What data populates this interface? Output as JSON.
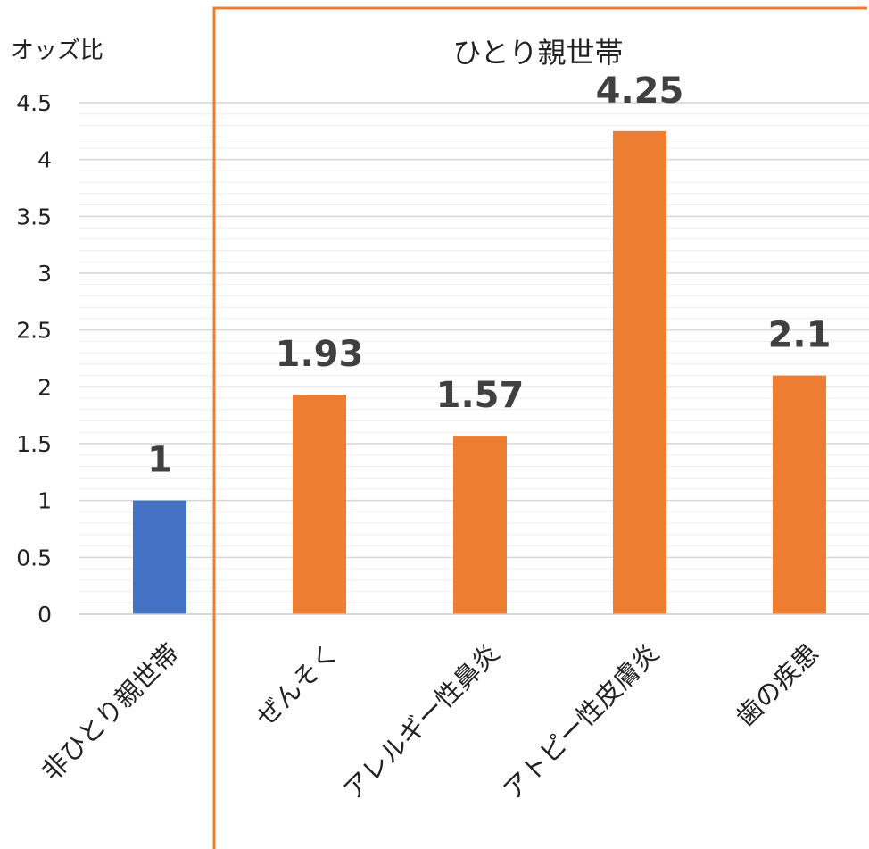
{
  "chart_data": {
    "type": "bar",
    "ylabel": "オッズ比",
    "group_title": "ひとり親世帯",
    "categories": [
      "非ひとり親世帯",
      "ぜんそく",
      "アレルギー性鼻炎",
      "アトピー性皮膚炎",
      "歯の疾患"
    ],
    "values": [
      1,
      1.93,
      1.57,
      4.25,
      2.1
    ],
    "data_labels": [
      "1",
      "1.93",
      "1.57",
      "4.25",
      "2.1"
    ],
    "yticks": [
      "0",
      "0.5",
      "1",
      "1.5",
      "2",
      "2.5",
      "3",
      "3.5",
      "4",
      "4.5"
    ],
    "ylim": [
      0,
      4.5
    ],
    "grid": true,
    "colors": {
      "reference_bar": "#4472c4",
      "group_bar": "#ed7d31",
      "group_border": "#ed7d31"
    }
  }
}
